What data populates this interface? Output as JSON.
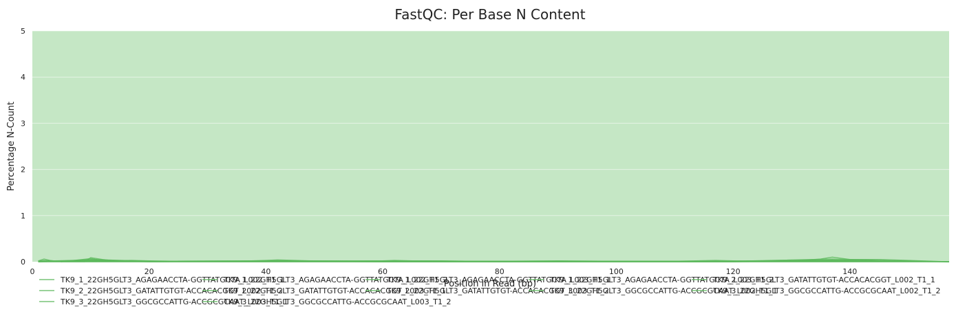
{
  "chart_data": {
    "type": "line",
    "title": "FastQC: Per Base N Content",
    "xlabel": "Position in Read (bp)",
    "ylabel": "Percentage N-Count",
    "xlim": [
      0,
      157
    ],
    "ylim": [
      0,
      5
    ],
    "xticks": [
      "0",
      "20",
      "40",
      "60",
      "80",
      "100",
      "120",
      "140"
    ],
    "yticks": [
      "0",
      "1",
      "2",
      "3",
      "4",
      "5"
    ],
    "grid": true,
    "background_band_color": "#c5e7c5",
    "line_color": "#5cb85c",
    "legend_position": "bottom",
    "series": [
      {
        "name": "TK9_1_22GH5GLT3_AGAGAACCTA-GGTTATGCTA_L002_T1_1",
        "x": [
          1,
          2,
          3,
          5,
          8,
          9,
          10,
          12,
          14,
          17,
          20,
          25,
          30,
          35,
          40,
          42,
          45,
          50,
          55,
          60,
          62,
          65,
          70,
          75,
          80,
          90,
          100,
          110,
          117,
          120,
          130,
          135,
          137,
          140,
          145,
          150,
          157
        ],
        "y": [
          0.02,
          0.06,
          0.03,
          0.0,
          0.0,
          0.0,
          0.09,
          0.05,
          0.02,
          0.03,
          0.02,
          0.01,
          0.01,
          0.01,
          0.03,
          0.04,
          0.03,
          0.01,
          0.01,
          0.02,
          0.03,
          0.02,
          0.02,
          0.01,
          0.01,
          0.02,
          0.01,
          0.01,
          0.03,
          0.02,
          0.01,
          0.06,
          0.1,
          0.05,
          0.05,
          0.03,
          0.0
        ]
      },
      {
        "name": "TK9_1_22GH5GLT3_AGAGAACCTA-GGTTATGCTA_L002_T1_2",
        "x": [
          1,
          2,
          5,
          10,
          12,
          20,
          40,
          60,
          80,
          100,
          120,
          137,
          145,
          157
        ],
        "y": [
          0.01,
          0.03,
          0.0,
          0.07,
          0.03,
          0.01,
          0.02,
          0.02,
          0.01,
          0.01,
          0.01,
          0.06,
          0.03,
          0.0
        ]
      },
      {
        "name": "TK9_1_22GH5GLT3_AGAGAACCTA-GGTTATGCTA_L003_T1_1",
        "x": [
          1,
          2,
          5,
          10,
          20,
          40,
          60,
          80,
          100,
          120,
          137,
          157
        ],
        "y": [
          0.01,
          0.02,
          0.0,
          0.05,
          0.01,
          0.02,
          0.01,
          0.01,
          0.01,
          0.01,
          0.04,
          0.0
        ]
      },
      {
        "name": "TK9_1_22GH5GLT3_AGAGAACCTA-GGTTATGCTA_L003_T1_2",
        "x": [
          1,
          10,
          20,
          40,
          60,
          80,
          100,
          120,
          137,
          157
        ],
        "y": [
          0.01,
          0.04,
          0.01,
          0.01,
          0.01,
          0.01,
          0.01,
          0.01,
          0.03,
          0.0
        ]
      },
      {
        "name": "TK9_2_22GH5GLT3_GATATTGTGT-ACCACACGGT_L002_T1_1",
        "x": [
          1,
          10,
          20,
          40,
          60,
          80,
          100,
          120,
          137,
          157
        ],
        "y": [
          0.01,
          0.03,
          0.01,
          0.02,
          0.01,
          0.01,
          0.01,
          0.01,
          0.03,
          0.0
        ]
      },
      {
        "name": "TK9_2_22GH5GLT3_GATATTGTGT-ACCACACGGT_L002_T1_2",
        "x": [
          1,
          10,
          20,
          40,
          60,
          80,
          100,
          120,
          137,
          157
        ],
        "y": [
          0.0,
          0.02,
          0.01,
          0.01,
          0.01,
          0.0,
          0.01,
          0.01,
          0.02,
          0.0
        ]
      },
      {
        "name": "TK9_2_22GH5GLT3_GATATTGTGT-ACCACACGGT_L003_T1_1",
        "x": [
          1,
          10,
          20,
          40,
          60,
          80,
          100,
          120,
          137,
          157
        ],
        "y": [
          0.0,
          0.02,
          0.0,
          0.01,
          0.0,
          0.0,
          0.0,
          0.0,
          0.02,
          0.0
        ]
      },
      {
        "name": "TK9_2_22GH5GLT3_GATATTGTGT-ACCACACGGT_L003_T1_2",
        "x": [
          1,
          10,
          20,
          40,
          60,
          80,
          100,
          120,
          137,
          157
        ],
        "y": [
          0.0,
          0.01,
          0.0,
          0.01,
          0.0,
          0.0,
          0.0,
          0.0,
          0.01,
          0.0
        ]
      },
      {
        "name": "TK9_3_22GH5GLT3_GGCGCCATTG-ACCGCGCAAT_L002_T1_1",
        "x": [
          1,
          10,
          20,
          40,
          60,
          80,
          100,
          120,
          137,
          157
        ],
        "y": [
          0.0,
          0.01,
          0.0,
          0.0,
          0.0,
          0.0,
          0.0,
          0.0,
          0.01,
          0.0
        ]
      },
      {
        "name": "TK9_3_22GH5GLT3_GGCGCCATTG-ACCGCGCAAT_L002_T1_2",
        "x": [
          1,
          157
        ],
        "y": [
          0.0,
          0.0
        ]
      },
      {
        "name": "TK9_3_22GH5GLT3_GGCGCCATTG-ACCGCGCAAT_L003_T1_1",
        "x": [
          1,
          157
        ],
        "y": [
          0.0,
          0.0
        ]
      },
      {
        "name": "TK9_3_22GH5GLT3_GGCGCCATTG-ACCGCGCAAT_L003_T1_2",
        "x": [
          1,
          157
        ],
        "y": [
          0.0,
          0.0
        ]
      }
    ]
  }
}
